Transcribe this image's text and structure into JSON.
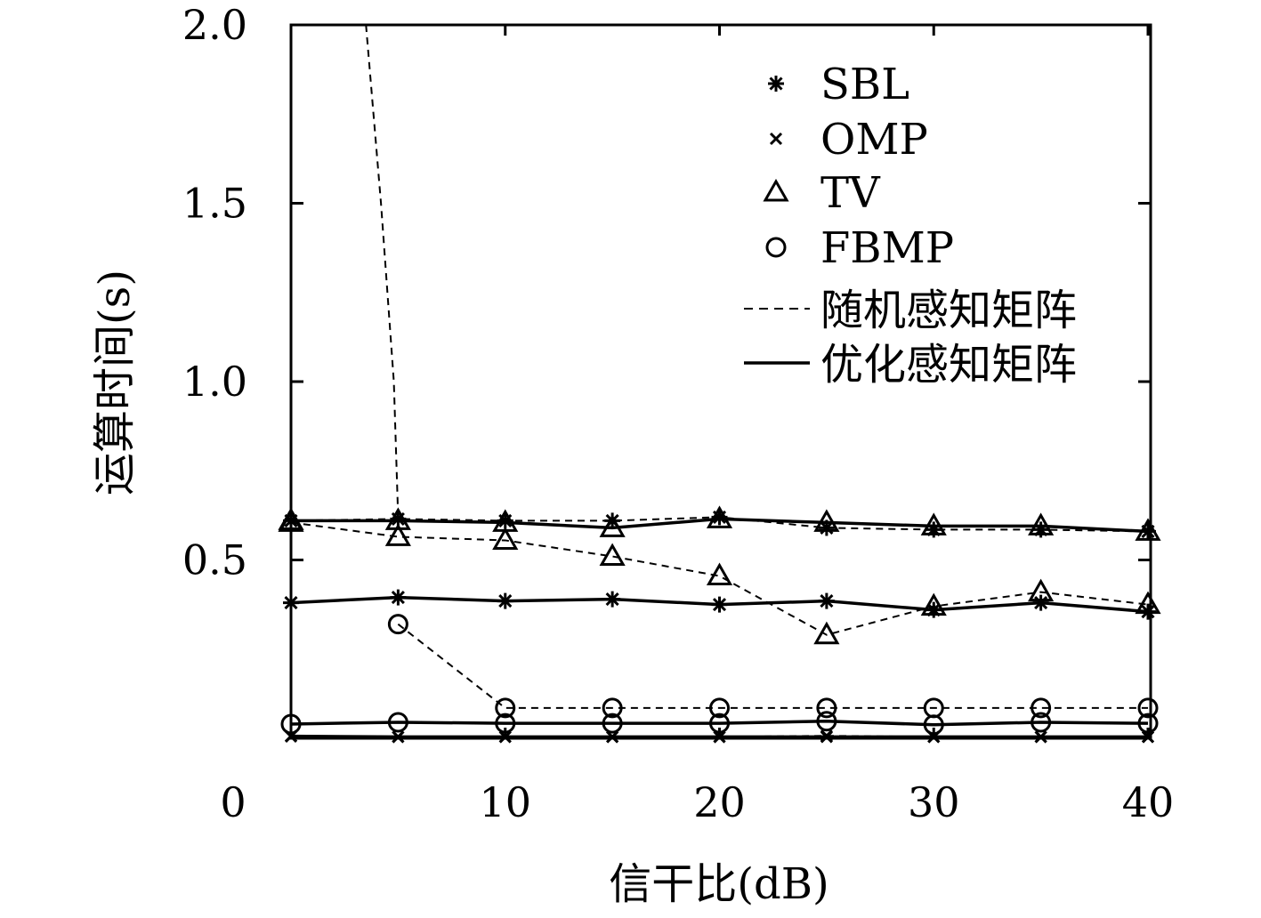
{
  "chart_data": {
    "type": "line",
    "xlabel": "信干比(dB)",
    "ylabel": "运算时间(s)",
    "xlim": [
      0,
      40
    ],
    "ylim": [
      0,
      2.0
    ],
    "x_ticks": [
      {
        "value": 0,
        "label": "0"
      },
      {
        "value": 10,
        "label": "10"
      },
      {
        "value": 20,
        "label": "20"
      },
      {
        "value": 30,
        "label": "30"
      },
      {
        "value": 40,
        "label": "40"
      }
    ],
    "y_ticks": [
      {
        "value": 0.5,
        "label": "0.5"
      },
      {
        "value": 1.0,
        "label": "1.0"
      },
      {
        "value": 1.5,
        "label": "1.5"
      },
      {
        "value": 2.0,
        "label": "2.0"
      }
    ],
    "x": [
      0,
      5,
      10,
      15,
      20,
      25,
      30,
      35,
      40
    ],
    "legend": {
      "position": "top-right",
      "markers": [
        {
          "marker": "asterisk",
          "label": "SBL"
        },
        {
          "marker": "cross",
          "label": "OMP"
        },
        {
          "marker": "triangle",
          "label": "TV"
        },
        {
          "marker": "circle",
          "label": "FBMP"
        }
      ],
      "lines": [
        {
          "style": "dashed",
          "label": "随机感知矩阵"
        },
        {
          "style": "solid",
          "label": "优化感知矩阵"
        }
      ]
    },
    "series": [
      {
        "algorithm": "SBL",
        "matrix": "随机感知矩阵",
        "marker": "asterisk",
        "style": "dashed",
        "values": [
          0.61,
          0.615,
          0.61,
          0.61,
          0.62,
          0.59,
          0.585,
          0.585,
          0.58
        ]
      },
      {
        "algorithm": "SBL",
        "matrix": "优化感知矩阵",
        "marker": "asterisk",
        "style": "solid",
        "values": [
          0.38,
          0.395,
          0.385,
          0.39,
          0.375,
          0.385,
          0.36,
          0.38,
          0.355
        ]
      },
      {
        "algorithm": "OMP",
        "matrix": "随机感知矩阵",
        "marker": "cross",
        "style": "dashed",
        "values": [
          0.005,
          0.004,
          0.004,
          0.004,
          0.004,
          0.007,
          0.004,
          0.004,
          0.004
        ]
      },
      {
        "algorithm": "OMP",
        "matrix": "优化感知矩阵",
        "marker": "cross",
        "style": "solid",
        "values": [
          0.006,
          0.004,
          0.004,
          0.004,
          0.004,
          0.004,
          0.004,
          0.004,
          0.004
        ]
      },
      {
        "algorithm": "TV",
        "matrix": "随机感知矩阵",
        "marker": "triangle",
        "style": "dashed",
        "values": [
          0.605,
          0.565,
          0.555,
          0.51,
          0.455,
          0.29,
          0.37,
          0.41,
          0.375
        ]
      },
      {
        "algorithm": "TV",
        "matrix": "优化感知矩阵",
        "marker": "triangle",
        "style": "solid",
        "values": [
          0.61,
          0.61,
          0.605,
          0.59,
          0.615,
          0.605,
          0.595,
          0.595,
          0.58
        ]
      },
      {
        "algorithm": "TV",
        "matrix": "随机感知矩阵",
        "marker": "triangle",
        "style": "dashed",
        "segment": "steep",
        "points": [
          [
            3.5,
            2.0
          ],
          [
            4.2,
            1.5
          ],
          [
            4.8,
            1.0
          ],
          [
            5.0,
            0.62
          ]
        ]
      },
      {
        "algorithm": "FBMP",
        "matrix": "随机感知矩阵",
        "marker": "circle",
        "style": "dashed",
        "values": [
          null,
          0.32,
          0.085,
          0.085,
          0.085,
          0.085,
          0.085,
          0.085,
          0.085
        ]
      },
      {
        "algorithm": "FBMP",
        "matrix": "优化感知矩阵",
        "marker": "circle",
        "style": "solid",
        "values": [
          0.04,
          0.045,
          0.042,
          0.042,
          0.042,
          0.048,
          0.038,
          0.045,
          0.042
        ]
      }
    ]
  }
}
